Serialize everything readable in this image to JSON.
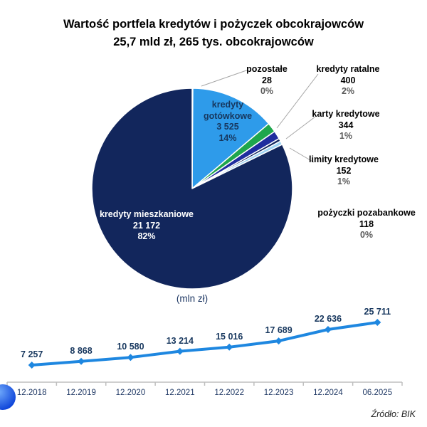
{
  "header": {
    "title_line1": "Wartość portfela kredytów i pożyczek obcokrajowców",
    "title_line2": "25,7 mld zł, 265 tys. obcokrajowców"
  },
  "source_note": "Źródło: BIK",
  "colors": {
    "pie_navy": "#12265C",
    "pie_bright_blue": "#2E9BEA",
    "pie_green": "#1FA64D",
    "pie_royal_blue": "#1F2D9E",
    "pie_pale_blue": "#9FD3F2",
    "line_blue": "#1E87E0",
    "axis_gray": "#BFBFBF",
    "leader_gray": "#A6A6A6",
    "label_navy": "#17375E",
    "pct_gray": "#595959"
  },
  "chart_data": [
    {
      "type": "pie",
      "unit": "(mln zł)",
      "total_note": "25,7 mld zł",
      "slices": [
        {
          "key": "pozostale",
          "label": "pozostałe",
          "value": 28,
          "value_label": "28",
          "pct": "0%",
          "color": "#FFFFFF",
          "label_placement": "outside"
        },
        {
          "key": "gotowkowe",
          "label": "kredyty gotówkowe",
          "value": 3525,
          "value_label": "3 525",
          "pct": "14%",
          "color": "#2E9BEA",
          "label_placement": "inside"
        },
        {
          "key": "ratalne",
          "label": "kredyty ratalne",
          "value": 400,
          "value_label": "400",
          "pct": "2%",
          "color": "#1FA64D",
          "label_placement": "outside"
        },
        {
          "key": "karty",
          "label": "karty kredytowe",
          "value": 344,
          "value_label": "344",
          "pct": "1%",
          "color": "#1F2D9E",
          "label_placement": "outside"
        },
        {
          "key": "pozabankowe",
          "label": "pożyczki pozabankowe",
          "value": 118,
          "value_label": "118",
          "pct": "0%",
          "color": "#12265C",
          "label_placement": "outside"
        },
        {
          "key": "limity",
          "label": "limity kredytowe",
          "value": 152,
          "value_label": "152",
          "pct": "1%",
          "color": "#9FD3F2",
          "label_placement": "outside"
        },
        {
          "key": "mieszkaniowe",
          "label": "kredyty mieszkaniowe",
          "value": 21172,
          "value_label": "21 172",
          "pct": "82%",
          "color": "#12265C",
          "label_placement": "inside"
        }
      ]
    },
    {
      "type": "line",
      "color": "#1E87E0",
      "categories": [
        "12.2018",
        "12.2019",
        "12.2020",
        "12.2021",
        "12.2022",
        "12.2023",
        "12.2024",
        "06.2025"
      ],
      "values": [
        7257,
        8868,
        10580,
        13214,
        15016,
        17689,
        22636,
        25711
      ],
      "value_labels": [
        "7 257",
        "8 868",
        "10 580",
        "13 214",
        "15 016",
        "17 689",
        "22 636",
        "25 711"
      ],
      "ylabel": "(mln zł)"
    }
  ]
}
